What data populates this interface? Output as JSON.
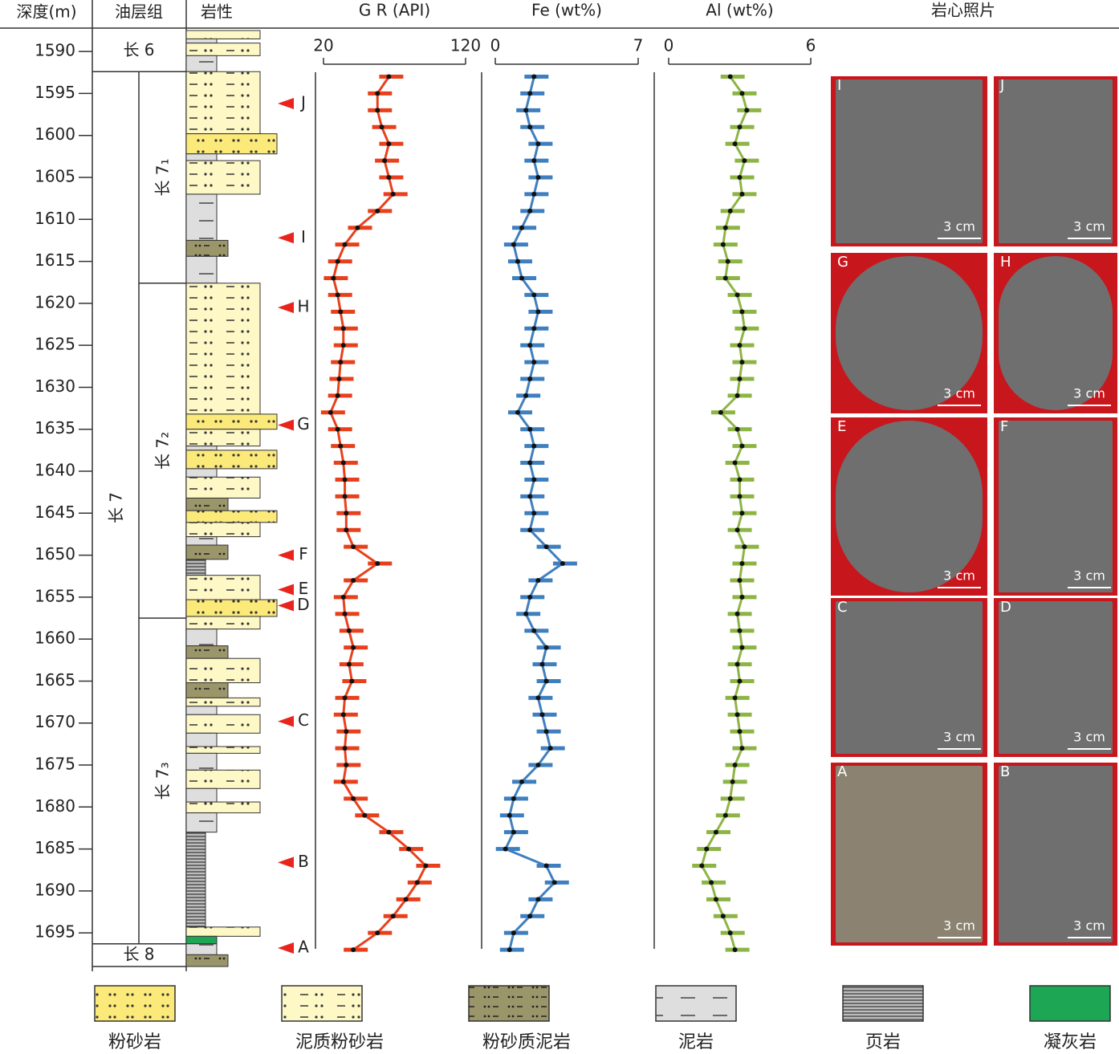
{
  "chart_data": {
    "type": "well-log",
    "depth_label": "深度(m)",
    "formation_label": "油层组",
    "lithology_label": "岩性",
    "photos_title": "岩心照片",
    "ylim": [
      1587.5,
      1699
    ],
    "yticks": [
      1590,
      1595,
      1600,
      1605,
      1610,
      1615,
      1620,
      1625,
      1630,
      1635,
      1640,
      1645,
      1650,
      1655,
      1660,
      1665,
      1670,
      1675,
      1680,
      1685,
      1690,
      1695
    ],
    "depths": [
      1593,
      1595,
      1597,
      1599,
      1601,
      1603,
      1605,
      1607,
      1609,
      1611,
      1613,
      1615,
      1617,
      1619,
      1621,
      1623,
      1625,
      1627,
      1629,
      1631,
      1633,
      1635,
      1637,
      1639,
      1641,
      1643,
      1645,
      1647,
      1649,
      1651,
      1653,
      1655,
      1657,
      1659,
      1661,
      1663,
      1665,
      1667,
      1669,
      1671,
      1673,
      1675,
      1677,
      1679,
      1681,
      1683,
      1685,
      1687,
      1689,
      1691,
      1693,
      1695,
      1697
    ],
    "tracks": [
      {
        "name": "G R (API)",
        "color": "#e8401c",
        "xlim": [
          20,
          120
        ],
        "xticks": [
          20,
          120
        ],
        "values": [
          66,
          58,
          58,
          61,
          66,
          63,
          66,
          69,
          58,
          44,
          35,
          30,
          27,
          30,
          32,
          34,
          34,
          32,
          31,
          30,
          25,
          30,
          32,
          34,
          35,
          35,
          36,
          36,
          41,
          58,
          41,
          34,
          35,
          38,
          41,
          38,
          40,
          35,
          34,
          36,
          35,
          36,
          34,
          41,
          49,
          66,
          80,
          92,
          86,
          78,
          69,
          58,
          41
        ]
      },
      {
        "name": "Fe (wt%)",
        "color": "#3f7fbf",
        "xlim": [
          0,
          7
        ],
        "xticks": [
          0,
          7
        ],
        "values": [
          1.9,
          1.7,
          1.5,
          1.7,
          2.1,
          1.9,
          2.1,
          1.9,
          1.7,
          1.3,
          0.9,
          1.1,
          1.3,
          1.9,
          2.1,
          1.9,
          1.7,
          1.9,
          1.7,
          1.5,
          1.1,
          1.7,
          1.9,
          1.7,
          1.9,
          1.7,
          1.9,
          1.7,
          2.5,
          3.3,
          2.1,
          1.7,
          1.5,
          1.9,
          2.5,
          2.3,
          2.5,
          2.1,
          2.3,
          2.5,
          2.7,
          2.1,
          1.3,
          0.9,
          0.7,
          0.9,
          0.5,
          2.5,
          2.9,
          2.1,
          1.7,
          0.9,
          0.7
        ]
      },
      {
        "name": "Al (wt%)",
        "color": "#8db545",
        "xlim": [
          0,
          6
        ],
        "xticks": [
          0,
          6
        ],
        "values": [
          2.6,
          3.1,
          3.3,
          3.0,
          2.8,
          3.2,
          3.0,
          3.1,
          2.6,
          2.4,
          2.3,
          2.5,
          2.4,
          2.9,
          3.1,
          3.2,
          3.0,
          3.1,
          3.0,
          2.9,
          2.2,
          2.9,
          3.1,
          2.8,
          3.0,
          3.0,
          3.1,
          2.9,
          3.2,
          3.1,
          3.0,
          3.1,
          2.9,
          3.0,
          3.1,
          2.9,
          3.0,
          2.8,
          2.9,
          3.0,
          3.1,
          2.8,
          2.7,
          2.6,
          2.4,
          2.0,
          1.6,
          1.4,
          1.8,
          2.0,
          2.3,
          2.6,
          2.8
        ]
      }
    ],
    "formations": [
      {
        "label": "长 6",
        "top": 1587.5,
        "bottom": 1592.4,
        "split": false
      },
      {
        "label": "长 7",
        "top": 1592.4,
        "bottom": 1696.3,
        "split": true
      },
      {
        "label": "长 8",
        "top": 1696.3,
        "bottom": 1699,
        "split": false
      }
    ],
    "members": [
      {
        "label": "长 7₁",
        "top": 1592.4,
        "bottom": 1617.6
      },
      {
        "label": "长 7₂",
        "top": 1617.6,
        "bottom": 1657.5
      },
      {
        "label": "长 7₃",
        "top": 1657.5,
        "bottom": 1696.3
      }
    ],
    "lithology": [
      {
        "top": 1587.5,
        "bottom": 1588.5,
        "lith": 1
      },
      {
        "top": 1588.5,
        "bottom": 1589,
        "lith": 3
      },
      {
        "top": 1589,
        "bottom": 1590.5,
        "lith": 1
      },
      {
        "top": 1590.5,
        "bottom": 1592.4,
        "lith": 3
      },
      {
        "top": 1592.4,
        "bottom": 1599.8,
        "lith": 1
      },
      {
        "top": 1599.8,
        "bottom": 1602.2,
        "lith": 0
      },
      {
        "top": 1602.2,
        "bottom": 1603,
        "lith": 3
      },
      {
        "top": 1603,
        "bottom": 1607,
        "lith": 1
      },
      {
        "top": 1607,
        "bottom": 1612.5,
        "lith": 3
      },
      {
        "top": 1612.5,
        "bottom": 1614.4,
        "lith": 2
      },
      {
        "top": 1614.4,
        "bottom": 1617.6,
        "lith": 3
      },
      {
        "top": 1617.6,
        "bottom": 1633.2,
        "lith": 1
      },
      {
        "top": 1633.2,
        "bottom": 1635,
        "lith": 0
      },
      {
        "top": 1635,
        "bottom": 1637,
        "lith": 1
      },
      {
        "top": 1637,
        "bottom": 1637.5,
        "lith": 3
      },
      {
        "top": 1637.5,
        "bottom": 1639.7,
        "lith": 0
      },
      {
        "top": 1639.7,
        "bottom": 1640.7,
        "lith": 3
      },
      {
        "top": 1640.7,
        "bottom": 1643.2,
        "lith": 1
      },
      {
        "top": 1643.2,
        "bottom": 1644.7,
        "lith": 2
      },
      {
        "top": 1644.7,
        "bottom": 1646.1,
        "lith": 0
      },
      {
        "top": 1646.1,
        "bottom": 1647.8,
        "lith": 1
      },
      {
        "top": 1647.8,
        "bottom": 1648.8,
        "lith": 3
      },
      {
        "top": 1648.8,
        "bottom": 1650.5,
        "lith": 2
      },
      {
        "top": 1650.5,
        "bottom": 1652.4,
        "lith": 4
      },
      {
        "top": 1652.4,
        "bottom": 1655.3,
        "lith": 1
      },
      {
        "top": 1655.3,
        "bottom": 1657.3,
        "lith": 0
      },
      {
        "top": 1657.3,
        "bottom": 1658.8,
        "lith": 1
      },
      {
        "top": 1658.8,
        "bottom": 1660.8,
        "lith": 3
      },
      {
        "top": 1660.8,
        "bottom": 1662.3,
        "lith": 2
      },
      {
        "top": 1662.3,
        "bottom": 1665.2,
        "lith": 1
      },
      {
        "top": 1665.2,
        "bottom": 1667,
        "lith": 2
      },
      {
        "top": 1667,
        "bottom": 1668,
        "lith": 1
      },
      {
        "top": 1668,
        "bottom": 1669,
        "lith": 3
      },
      {
        "top": 1669,
        "bottom": 1671.2,
        "lith": 1
      },
      {
        "top": 1671.2,
        "bottom": 1672.8,
        "lith": 3
      },
      {
        "top": 1672.8,
        "bottom": 1673.6,
        "lith": 1
      },
      {
        "top": 1673.6,
        "bottom": 1675.6,
        "lith": 3
      },
      {
        "top": 1675.6,
        "bottom": 1677.8,
        "lith": 1
      },
      {
        "top": 1677.8,
        "bottom": 1679.4,
        "lith": 3
      },
      {
        "top": 1679.4,
        "bottom": 1680.7,
        "lith": 1
      },
      {
        "top": 1680.7,
        "bottom": 1683,
        "lith": 3
      },
      {
        "top": 1683,
        "bottom": 1694.3,
        "lith": 4
      },
      {
        "top": 1694.3,
        "bottom": 1695.4,
        "lith": 1
      },
      {
        "top": 1695.4,
        "bottom": 1696.3,
        "lith": 5
      },
      {
        "top": 1696.3,
        "bottom": 1697.6,
        "lith": 3
      },
      {
        "top": 1697.6,
        "bottom": 1699,
        "lith": 2
      }
    ],
    "markers": [
      {
        "label": "J",
        "depth": 1596.2
      },
      {
        "label": "I",
        "depth": 1612.2
      },
      {
        "label": "H",
        "depth": 1620.5
      },
      {
        "label": "G",
        "depth": 1634.5
      },
      {
        "label": "F",
        "depth": 1650
      },
      {
        "label": "E",
        "depth": 1654.1
      },
      {
        "label": "D",
        "depth": 1656
      },
      {
        "label": "C",
        "depth": 1669.8
      },
      {
        "label": "B",
        "depth": 1686.6
      },
      {
        "label": "A",
        "depth": 1696.8
      }
    ],
    "legend": [
      {
        "label": "粉砂岩",
        "color": "#fbe97a"
      },
      {
        "label": "泥质粉砂岩",
        "color": "#fdf8c6"
      },
      {
        "label": "粉砂质泥岩",
        "color": "#9b966a"
      },
      {
        "label": "泥岩",
        "color": "#dedede"
      },
      {
        "label": "页岩",
        "color": "#bdbdbd"
      },
      {
        "label": "凝灰岩",
        "color": "#1da653"
      }
    ],
    "photos": [
      {
        "label": "I",
        "scale": "3 cm"
      },
      {
        "label": "J",
        "scale": "3 cm"
      },
      {
        "label": "G",
        "scale": "3 cm"
      },
      {
        "label": "H",
        "scale": "3 cm"
      },
      {
        "label": "E",
        "scale": "3 cm"
      },
      {
        "label": "F",
        "scale": "3 cm"
      },
      {
        "label": "C",
        "scale": "3 cm"
      },
      {
        "label": "D",
        "scale": "3 cm"
      },
      {
        "label": "A",
        "scale": "3 cm"
      },
      {
        "label": "B",
        "scale": "3 cm"
      }
    ]
  }
}
